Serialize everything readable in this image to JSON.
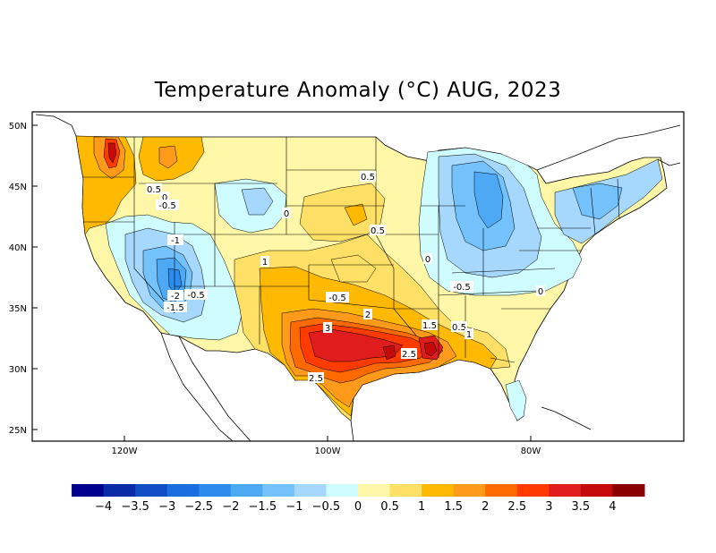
{
  "title": "Temperature Anomaly (°C) AUG, 2023",
  "map": {
    "lat_ticks": [
      "50N",
      "45N",
      "40N",
      "35N",
      "30N",
      "25N"
    ],
    "lon_ticks": [
      "120W",
      "100W",
      "80W"
    ],
    "contour_labels": [
      "0.5",
      "0",
      "-0.5",
      "0.5",
      "0",
      "0.5",
      "-1",
      "1",
      "-2",
      "-0.5",
      "-1.5",
      "-0.5",
      "0",
      "-0.5",
      "0",
      "2",
      "3",
      "1.5",
      "0.5",
      "1",
      "2.5",
      "2.5"
    ]
  },
  "colorbar": {
    "labels": [
      "-4",
      "-3.5",
      "-3",
      "-2.5",
      "-2",
      "-1.5",
      "-1",
      "-0.5",
      "0",
      "0.5",
      "1",
      "1.5",
      "2",
      "2.5",
      "3",
      "3.5",
      "4"
    ],
    "colors": [
      "#00008f",
      "#0a2ba8",
      "#0f4dc4",
      "#1a6ee0",
      "#2b8cee",
      "#4ea9f5",
      "#73c2fb",
      "#a6d7fc",
      "#cffcff",
      "#fff7a8",
      "#ffe066",
      "#ffb900",
      "#ff9a1a",
      "#ff6a00",
      "#ff3b00",
      "#e01c1c",
      "#c40a0a",
      "#8a0000"
    ]
  }
}
